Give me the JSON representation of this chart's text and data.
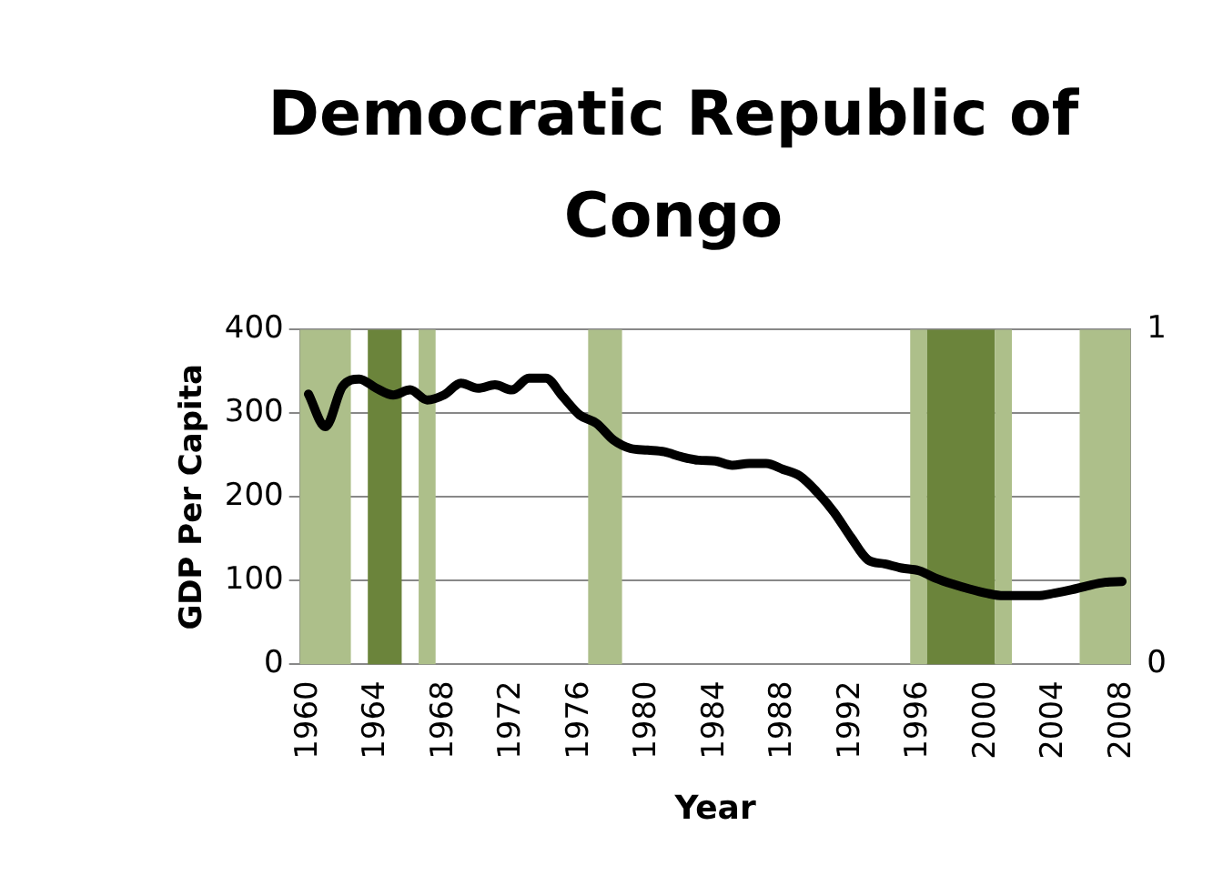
{
  "chart_data": {
    "type": "line",
    "title": "Democratic Republic of Congo",
    "xlabel": "Year",
    "ylabel": "GDP Per Capita",
    "x": [
      1960,
      1961,
      1962,
      1963,
      1964,
      1965,
      1966,
      1967,
      1968,
      1969,
      1970,
      1971,
      1972,
      1973,
      1974,
      1975,
      1976,
      1977,
      1978,
      1979,
      1980,
      1981,
      1982,
      1983,
      1984,
      1985,
      1986,
      1987,
      1988,
      1989,
      1990,
      1991,
      1992,
      1993,
      1994,
      1995,
      1996,
      1997,
      1998,
      1999,
      2000,
      2001,
      2002,
      2003,
      2004,
      2005,
      2006,
      2007,
      2008
    ],
    "series": [
      {
        "color": "#000000",
        "values": [
          323,
          284,
          332,
          341,
          330,
          322,
          328,
          316,
          322,
          336,
          330,
          334,
          328,
          342,
          342,
          320,
          298,
          288,
          268,
          258,
          256,
          254,
          248,
          244,
          243,
          238,
          240,
          240,
          233,
          225,
          206,
          182,
          152,
          125,
          120,
          115,
          112,
          103,
          96,
          90,
          85,
          82,
          82,
          82,
          85,
          89,
          94,
          98,
          99
        ]
      }
    ],
    "bands": [
      {
        "axis": "x",
        "from": 1959.5,
        "to": 1962.5,
        "color": "#adbf8a"
      },
      {
        "axis": "x",
        "from": 1963.5,
        "to": 1965.5,
        "color": "#6b843b"
      },
      {
        "axis": "x",
        "from": 1966.5,
        "to": 1967.5,
        "color": "#adbf8a"
      },
      {
        "axis": "x",
        "from": 1976.5,
        "to": 1978.5,
        "color": "#adbf8a"
      },
      {
        "axis": "x",
        "from": 1995.5,
        "to": 1996.5,
        "color": "#adbf8a"
      },
      {
        "axis": "x",
        "from": 1996.5,
        "to": 2000.5,
        "color": "#6b843b"
      },
      {
        "axis": "x",
        "from": 2000.5,
        "to": 2001.5,
        "color": "#adbf8a"
      },
      {
        "axis": "x",
        "from": 2005.5,
        "to": 2008.5,
        "color": "#adbf8a"
      }
    ],
    "xlim": [
      1959.5,
      2008.5
    ],
    "xticks": [
      1960,
      1964,
      1968,
      1972,
      1976,
      1980,
      1984,
      1988,
      1992,
      1996,
      2000,
      2004,
      2008
    ],
    "ylim": [
      0,
      400
    ],
    "yticks": [
      0,
      100,
      200,
      300,
      400
    ],
    "y2lim": [
      0,
      1
    ],
    "y2ticks": [
      0,
      1
    ],
    "grid": "y",
    "legend": false,
    "marker": "none"
  }
}
